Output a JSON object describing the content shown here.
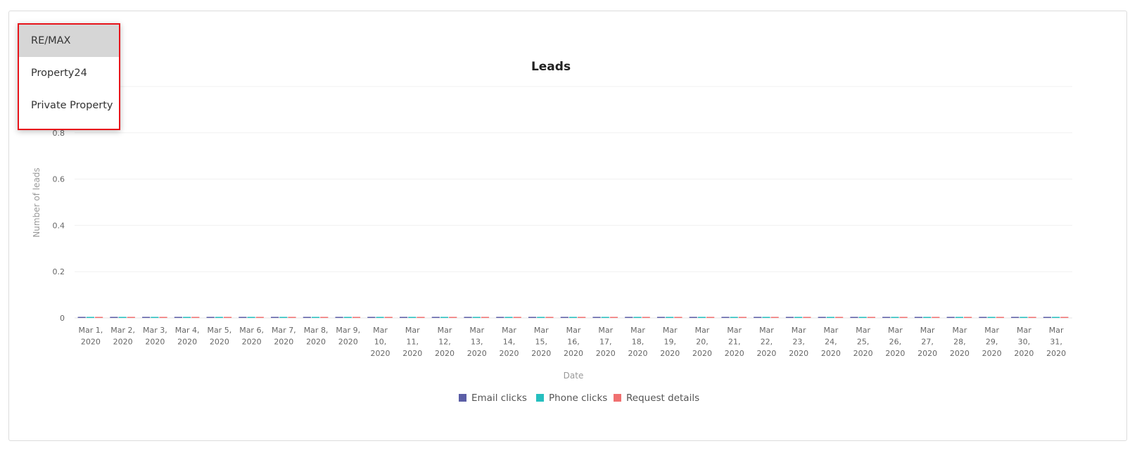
{
  "dropdown": {
    "items": [
      {
        "label": "RE/MAX",
        "selected": true
      },
      {
        "label": "Property24",
        "selected": false
      },
      {
        "label": "Private Property",
        "selected": false
      }
    ]
  },
  "chart_data": {
    "type": "bar",
    "title": "Leads",
    "xlabel": "Date",
    "ylabel": "Number of leads",
    "ylim": [
      0,
      1
    ],
    "yticks": [
      "0",
      "0.2",
      "0.4",
      "0.6",
      "0.8"
    ],
    "grid": true,
    "legend_position": "bottom",
    "categories": [
      [
        "Mar 1,",
        "2020"
      ],
      [
        "Mar 2,",
        "2020"
      ],
      [
        "Mar 3,",
        "2020"
      ],
      [
        "Mar 4,",
        "2020"
      ],
      [
        "Mar 5,",
        "2020"
      ],
      [
        "Mar 6,",
        "2020"
      ],
      [
        "Mar 7,",
        "2020"
      ],
      [
        "Mar 8,",
        "2020"
      ],
      [
        "Mar 9,",
        "2020"
      ],
      [
        "Mar",
        "10,",
        "2020"
      ],
      [
        "Mar",
        "11,",
        "2020"
      ],
      [
        "Mar",
        "12,",
        "2020"
      ],
      [
        "Mar",
        "13,",
        "2020"
      ],
      [
        "Mar",
        "14,",
        "2020"
      ],
      [
        "Mar",
        "15,",
        "2020"
      ],
      [
        "Mar",
        "16,",
        "2020"
      ],
      [
        "Mar",
        "17,",
        "2020"
      ],
      [
        "Mar",
        "18,",
        "2020"
      ],
      [
        "Mar",
        "19,",
        "2020"
      ],
      [
        "Mar",
        "20,",
        "2020"
      ],
      [
        "Mar",
        "21,",
        "2020"
      ],
      [
        "Mar",
        "22,",
        "2020"
      ],
      [
        "Mar",
        "23,",
        "2020"
      ],
      [
        "Mar",
        "24,",
        "2020"
      ],
      [
        "Mar",
        "25,",
        "2020"
      ],
      [
        "Mar",
        "26,",
        "2020"
      ],
      [
        "Mar",
        "27,",
        "2020"
      ],
      [
        "Mar",
        "28,",
        "2020"
      ],
      [
        "Mar",
        "29,",
        "2020"
      ],
      [
        "Mar",
        "30,",
        "2020"
      ],
      [
        "Mar",
        "31,",
        "2020"
      ]
    ],
    "series": [
      {
        "name": "Email clicks",
        "color": "#5b5ea6",
        "values": [
          0,
          0,
          0,
          0,
          0,
          0,
          0,
          0,
          0,
          0,
          0,
          0,
          0,
          0,
          0,
          0,
          0,
          0,
          0,
          0,
          0,
          0,
          0,
          0,
          0,
          0,
          0,
          0,
          0,
          0,
          0
        ]
      },
      {
        "name": "Phone clicks",
        "color": "#26bfbf",
        "values": [
          0,
          0,
          0,
          0,
          0,
          0,
          0,
          0,
          0,
          0,
          0,
          0,
          0,
          0,
          0,
          0,
          0,
          0,
          0,
          0,
          0,
          0,
          0,
          0,
          0,
          0,
          0,
          0,
          0,
          0,
          0
        ]
      },
      {
        "name": "Request details",
        "color": "#f07070",
        "values": [
          0,
          0,
          0,
          0,
          0,
          0,
          0,
          0,
          0,
          0,
          0,
          0,
          0,
          0,
          0,
          0,
          0,
          0,
          0,
          0,
          0,
          0,
          0,
          0,
          0,
          0,
          0,
          0,
          0,
          0,
          0
        ]
      }
    ]
  }
}
